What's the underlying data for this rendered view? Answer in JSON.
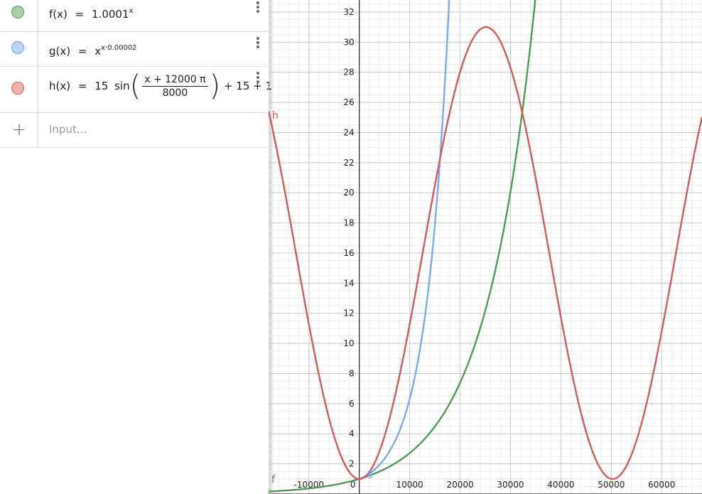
{
  "algebra": {
    "functions": [
      {
        "id": "f",
        "color": "#5a9a5a",
        "fill": "#a9d0a9",
        "lhs": "f(x)",
        "eq": "=",
        "base": "1.0001",
        "exp": "x"
      },
      {
        "id": "g",
        "color": "#6d9ee8",
        "fill": "#bcd4f7",
        "lhs": "g(x)",
        "eq": "=",
        "base": "x",
        "exp": "x·0.00002"
      },
      {
        "id": "h",
        "color": "#d05a5a",
        "fill": "#efb0b0",
        "lhs": "h(x)",
        "eq": "=",
        "coef": "15",
        "fn": "sin",
        "num": "x + 12000 π",
        "den": "8000",
        "tail": "+ 15 + 1"
      }
    ],
    "input": {
      "add_icon": "+",
      "placeholder": "Input..."
    }
  },
  "graph": {
    "x_ticks": [
      "-10000",
      "0",
      "10000",
      "20000",
      "30000",
      "40000",
      "50000",
      "60000"
    ],
    "y_ticks": [
      "2",
      "4",
      "6",
      "8",
      "10",
      "12",
      "14",
      "16",
      "18",
      "20",
      "22",
      "24",
      "26",
      "28",
      "30",
      "32"
    ],
    "curve_labels": {
      "f": "f",
      "g": "g",
      "h": "h"
    },
    "colors": {
      "f": "#4f9a54",
      "g": "#7ea7f0",
      "h": "#d35a5a",
      "axis": "#333333",
      "grid_major": "#c8c8c8",
      "grid_minor": "#ececec"
    }
  },
  "chart_data": {
    "type": "line",
    "xlim": [
      -18000,
      68000
    ],
    "ylim": [
      0,
      32.8
    ],
    "grid": true,
    "series": [
      {
        "name": "f",
        "expression": "1.0001^x"
      },
      {
        "name": "g",
        "expression": "x^(x·0.00002)"
      },
      {
        "name": "h",
        "expression": "15 sin((x + 12000 π) / 8000) + 15 + 1"
      }
    ]
  }
}
